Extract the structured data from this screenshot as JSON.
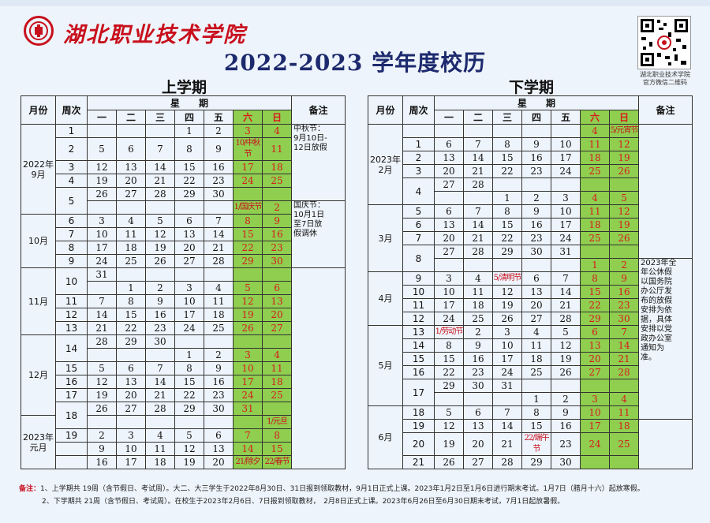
{
  "header": {
    "school": "湖北职业技术学院",
    "title": "2022-2023 学年度校历",
    "qr_caption_1": "湖北职业技术学院",
    "qr_caption_2": "官方微信二维码"
  },
  "columns": {
    "month": "月份",
    "week": "周次",
    "weekday_group": "星　　期",
    "remarks": "备注",
    "days": [
      "一",
      "二",
      "三",
      "四",
      "五",
      "六",
      "日"
    ]
  },
  "semester1": {
    "title": "上学期",
    "weeks": [
      {
        "w": "1",
        "days": [
          "",
          "",
          "",
          "1",
          "2",
          "3",
          "4"
        ]
      },
      {
        "w": "2",
        "days": [
          "5",
          "6",
          "7",
          "8",
          "9",
          "10/中秋节",
          "11"
        ]
      },
      {
        "w": "3",
        "days": [
          "12",
          "13",
          "14",
          "15",
          "16",
          "17",
          "18"
        ]
      },
      {
        "w": "4",
        "days": [
          "19",
          "20",
          "21",
          "22",
          "23",
          "24",
          "25"
        ]
      },
      {
        "w": "5",
        "days": [
          "26",
          "27",
          "28",
          "29",
          "30",
          "",
          ""
        ]
      },
      {
        "w": "",
        "days": [
          "",
          "",
          "",
          "",
          "",
          "1/国庆节",
          "2"
        ]
      },
      {
        "w": "6",
        "days": [
          "3",
          "4",
          "5",
          "6",
          "7",
          "8",
          "9"
        ]
      },
      {
        "w": "7",
        "days": [
          "10",
          "11",
          "12",
          "13",
          "14",
          "15",
          "16"
        ]
      },
      {
        "w": "8",
        "days": [
          "17",
          "18",
          "19",
          "20",
          "21",
          "22",
          "23"
        ]
      },
      {
        "w": "9",
        "days": [
          "24",
          "25",
          "26",
          "27",
          "28",
          "29",
          "30"
        ]
      },
      {
        "w": "10",
        "days": [
          "31",
          "",
          "",
          "",
          "",
          "",
          ""
        ]
      },
      {
        "w": "",
        "days": [
          "",
          "1",
          "2",
          "3",
          "4",
          "5",
          "6"
        ]
      },
      {
        "w": "11",
        "days": [
          "7",
          "8",
          "9",
          "10",
          "11",
          "12",
          "13"
        ]
      },
      {
        "w": "12",
        "days": [
          "14",
          "15",
          "16",
          "17",
          "18",
          "19",
          "20"
        ]
      },
      {
        "w": "13",
        "days": [
          "21",
          "22",
          "23",
          "24",
          "25",
          "26",
          "27"
        ]
      },
      {
        "w": "14",
        "days": [
          "28",
          "29",
          "30",
          "",
          "",
          "",
          ""
        ]
      },
      {
        "w": "",
        "days": [
          "",
          "",
          "",
          "1",
          "2",
          "3",
          "4"
        ]
      },
      {
        "w": "15",
        "days": [
          "5",
          "6",
          "7",
          "8",
          "9",
          "10",
          "11"
        ]
      },
      {
        "w": "16",
        "days": [
          "12",
          "13",
          "14",
          "15",
          "16",
          "17",
          "18"
        ]
      },
      {
        "w": "17",
        "days": [
          "19",
          "20",
          "21",
          "22",
          "23",
          "24",
          "25"
        ]
      },
      {
        "w": "18",
        "days": [
          "26",
          "27",
          "28",
          "29",
          "30",
          "31",
          ""
        ]
      },
      {
        "w": "",
        "days": [
          "",
          "",
          "",
          "",
          "",
          "",
          "1/元旦"
        ]
      },
      {
        "w": "19",
        "days": [
          "2",
          "3",
          "4",
          "5",
          "6",
          "7",
          "8"
        ]
      },
      {
        "w": "",
        "days": [
          "9",
          "10",
          "11",
          "12",
          "13",
          "14",
          "15"
        ]
      },
      {
        "w": "",
        "days": [
          "16",
          "17",
          "18",
          "19",
          "20",
          "21/除夕",
          "22/春节"
        ]
      }
    ],
    "months": [
      {
        "label": "2022年\n9月",
        "rows": 6
      },
      {
        "label": "10月",
        "rows": 4
      },
      {
        "label": "11月",
        "rows": 5
      },
      {
        "label": "12月",
        "rows": 6
      },
      {
        "label": "2023年\n元月",
        "rows": 4
      }
    ],
    "notes": [
      {
        "text": "中秋节：\n9月10日-\n12日放假",
        "rows": 5
      },
      {
        "text": "国庆节：\n10月1日\n至7日放\n假调休",
        "rows": 5
      },
      {
        "text": "",
        "rows": 15
      }
    ]
  },
  "semester2": {
    "title": "下学期",
    "weeks": [
      {
        "w": "",
        "days": [
          "",
          "",
          "",
          "",
          "",
          "4",
          "5/元宵节"
        ]
      },
      {
        "w": "1",
        "days": [
          "6",
          "7",
          "8",
          "9",
          "10",
          "11",
          "12"
        ]
      },
      {
        "w": "2",
        "days": [
          "13",
          "14",
          "15",
          "16",
          "17",
          "18",
          "19"
        ]
      },
      {
        "w": "3",
        "days": [
          "20",
          "21",
          "22",
          "23",
          "24",
          "25",
          "26"
        ]
      },
      {
        "w": "4",
        "days": [
          "27",
          "28",
          "",
          "",
          "",
          "",
          ""
        ]
      },
      {
        "w": "",
        "days": [
          "",
          "",
          "1",
          "2",
          "3",
          "4",
          "5"
        ]
      },
      {
        "w": "5",
        "days": [
          "6",
          "7",
          "8",
          "9",
          "10",
          "11",
          "12"
        ]
      },
      {
        "w": "6",
        "days": [
          "13",
          "14",
          "15",
          "16",
          "17",
          "18",
          "19"
        ]
      },
      {
        "w": "7",
        "days": [
          "20",
          "21",
          "22",
          "23",
          "24",
          "25",
          "26"
        ]
      },
      {
        "w": "8",
        "days": [
          "27",
          "28",
          "29",
          "30",
          "31",
          "",
          ""
        ]
      },
      {
        "w": "",
        "days": [
          "",
          "",
          "",
          "",
          "",
          "1",
          "2"
        ]
      },
      {
        "w": "9",
        "days": [
          "3",
          "4",
          "5/清明节",
          "6",
          "7",
          "8",
          "9"
        ]
      },
      {
        "w": "10",
        "days": [
          "10",
          "11",
          "12",
          "13",
          "14",
          "15",
          "16"
        ]
      },
      {
        "w": "11",
        "days": [
          "17",
          "18",
          "19",
          "20",
          "21",
          "22",
          "23"
        ]
      },
      {
        "w": "12",
        "days": [
          "24",
          "25",
          "26",
          "27",
          "28",
          "29",
          "30"
        ]
      },
      {
        "w": "13",
        "days": [
          "1/劳动节",
          "2",
          "3",
          "4",
          "5",
          "6",
          "7"
        ]
      },
      {
        "w": "14",
        "days": [
          "8",
          "9",
          "10",
          "11",
          "12",
          "13",
          "14"
        ]
      },
      {
        "w": "15",
        "days": [
          "15",
          "16",
          "17",
          "18",
          "19",
          "20",
          "21"
        ]
      },
      {
        "w": "16",
        "days": [
          "22",
          "23",
          "24",
          "25",
          "26",
          "27",
          "28"
        ]
      },
      {
        "w": "17",
        "days": [
          "29",
          "30",
          "31",
          "",
          "",
          "",
          ""
        ]
      },
      {
        "w": "",
        "days": [
          "",
          "",
          "",
          "1",
          "2",
          "3",
          "4"
        ]
      },
      {
        "w": "18",
        "days": [
          "5",
          "6",
          "7",
          "8",
          "9",
          "10",
          "11"
        ]
      },
      {
        "w": "19",
        "days": [
          "12",
          "13",
          "14",
          "15",
          "16",
          "17",
          "18"
        ]
      },
      {
        "w": "20",
        "days": [
          "19",
          "20",
          "21",
          "22/端午节",
          "23",
          "24",
          "25"
        ]
      },
      {
        "w": "21",
        "days": [
          "26",
          "27",
          "28",
          "29",
          "30",
          "",
          ""
        ]
      }
    ],
    "months": [
      {
        "label": "2023年\n2月",
        "rows": 6
      },
      {
        "label": "3月",
        "rows": 5
      },
      {
        "label": "4月",
        "rows": 4
      },
      {
        "label": "5月",
        "rows": 6
      },
      {
        "label": "6月",
        "rows": 4
      }
    ],
    "notes": [
      {
        "text": "",
        "rows": 10
      },
      {
        "text": "2023年全\n年公休假\n以国务院\n办公厅发\n布的放假\n安排为依\n据，具体\n安排以党\n政办公室\n通知为\n准。",
        "rows": 12
      },
      {
        "text": "",
        "rows": 3
      }
    ]
  },
  "footer": {
    "label": "备注：",
    "line1": "1、上学期共 19周（含节假日、考试周）。大二、大三学生于2022年8月30日、31日报到领取教材，9月1日正式上课。2023年1月2日至1月6日进行期末考试。1月7日（腊月十六）起放寒假。",
    "line2": "2、下学期共 21周（含节假日、考试周）。在校生于2023年2月6日、7日报到领取教材，　2月8日正式上课。2023年6月26日至6月30日期末考试，7月1日起放暑假。"
  },
  "colors": {
    "weekend_green": "#8fce4f",
    "holiday_red": "#c8101d",
    "title_navy": "#1d2a6e"
  }
}
